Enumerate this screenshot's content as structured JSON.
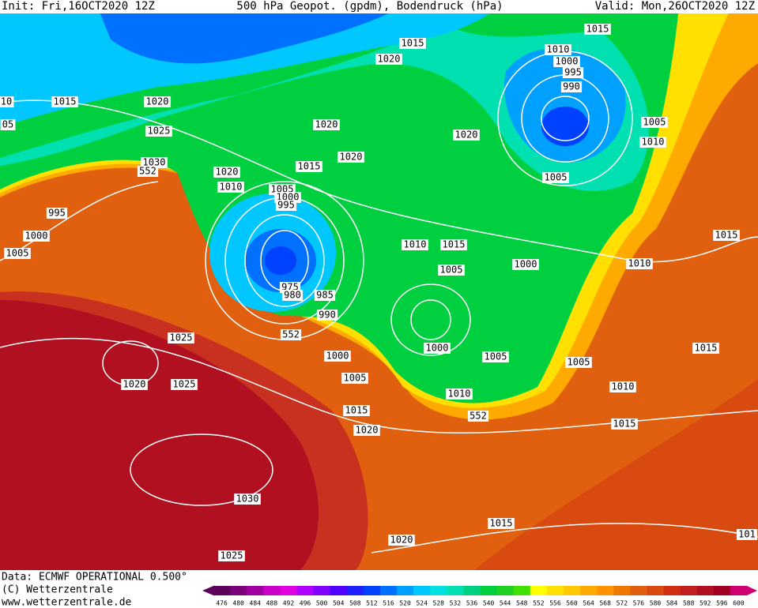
{
  "header": {
    "init": "Init: Fri,16OCT2020 12Z",
    "title": "500 hPa Geopot. (gpdm), Bodendruck (hPa)",
    "valid": "Valid: Mon,26OCT2020 12Z"
  },
  "footer": {
    "data": "Data: ECMWF OPERATIONAL 0.500°",
    "copyright": "(C) Wetterzentrale",
    "url": "www.wetterzentrale.de"
  },
  "isobar_labels": [
    "1015",
    "1020",
    "1025",
    "1030",
    "552",
    "995",
    "1000",
    "1005",
    "1020",
    "1010",
    "1015",
    "1020",
    "1020",
    "1005",
    "1000",
    "995",
    "975",
    "980",
    "985",
    "990",
    "552",
    "1025",
    "1020",
    "1025",
    "1000",
    "1005",
    "1015",
    "1020",
    "1030",
    "1025",
    "1020",
    "1015",
    "1010",
    "1015",
    "1005",
    "1000",
    "1000",
    "1005",
    "1010",
    "552",
    "1005",
    "1010",
    "1015",
    "1015",
    "1010",
    "1015",
    "1005",
    "1010",
    "1005",
    "1020",
    "1015",
    "1020",
    "1015",
    "1010",
    "1000",
    "995",
    "990",
    "10",
    "05",
    "101"
  ],
  "colorbar": {
    "levels": [
      476,
      480,
      484,
      488,
      492,
      496,
      500,
      504,
      508,
      512,
      516,
      520,
      524,
      528,
      532,
      536,
      540,
      544,
      548,
      552,
      556,
      560,
      564,
      568,
      572,
      576,
      580,
      584,
      588,
      592,
      596,
      600
    ],
    "colors": [
      "#5a005a",
      "#7a007a",
      "#a000a0",
      "#c800c8",
      "#e000e0",
      "#b000ff",
      "#8000ff",
      "#5000ff",
      "#2020ff",
      "#0040ff",
      "#0070ff",
      "#00a0ff",
      "#00c8ff",
      "#00e0e0",
      "#00e0b0",
      "#00d080",
      "#00d040",
      "#20d020",
      "#40e000",
      "#ffff00",
      "#ffe000",
      "#ffc800",
      "#ffaa00",
      "#ff9000",
      "#f07800",
      "#e06010",
      "#d84a10",
      "#d03010",
      "#c02020",
      "#b01020",
      "#a00020",
      "#d00070"
    ]
  }
}
